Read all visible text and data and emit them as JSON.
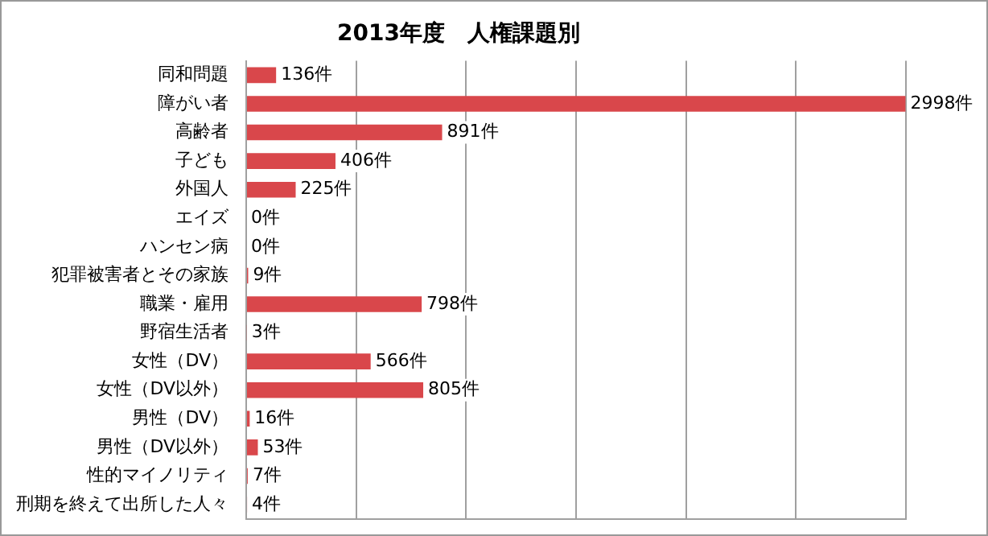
{
  "chart_data": {
    "type": "bar",
    "orientation": "horizontal",
    "title": "2013年度　人権課題別",
    "categories": [
      "同和問題",
      "障がい者",
      "高齢者",
      "子ども",
      "外国人",
      "エイズ",
      "ハンセン病",
      "犯罪被害者とその家族",
      "職業・雇用",
      "野宿生活者",
      "女性（DV）",
      "女性（DV以外）",
      "男性（DV）",
      "男性（DV以外）",
      "性的マイノリティ",
      "刑期を終えて出所した人々"
    ],
    "values": [
      136,
      2998,
      891,
      406,
      225,
      0,
      0,
      9,
      798,
      3,
      566,
      805,
      16,
      53,
      7,
      4
    ],
    "value_labels": [
      "136件",
      "2998件",
      "891件",
      "406件",
      "225件",
      "0件",
      "0件",
      "9件",
      "798件",
      "3件",
      "566件",
      "805件",
      "16件",
      "53件",
      "7件",
      "4件"
    ],
    "color": "#d9474b",
    "xlim": [
      0,
      3000
    ],
    "xticks": [
      {
        "value": 0,
        "label": null
      },
      {
        "value": 500,
        "label": null
      },
      {
        "value": 1000,
        "label": null
      },
      {
        "value": 1500,
        "label": null
      },
      {
        "value": 2000,
        "label": null
      },
      {
        "value": 2500,
        "label": null
      },
      {
        "value": 3000,
        "label": null
      }
    ],
    "grid": "x",
    "legend": false
  }
}
